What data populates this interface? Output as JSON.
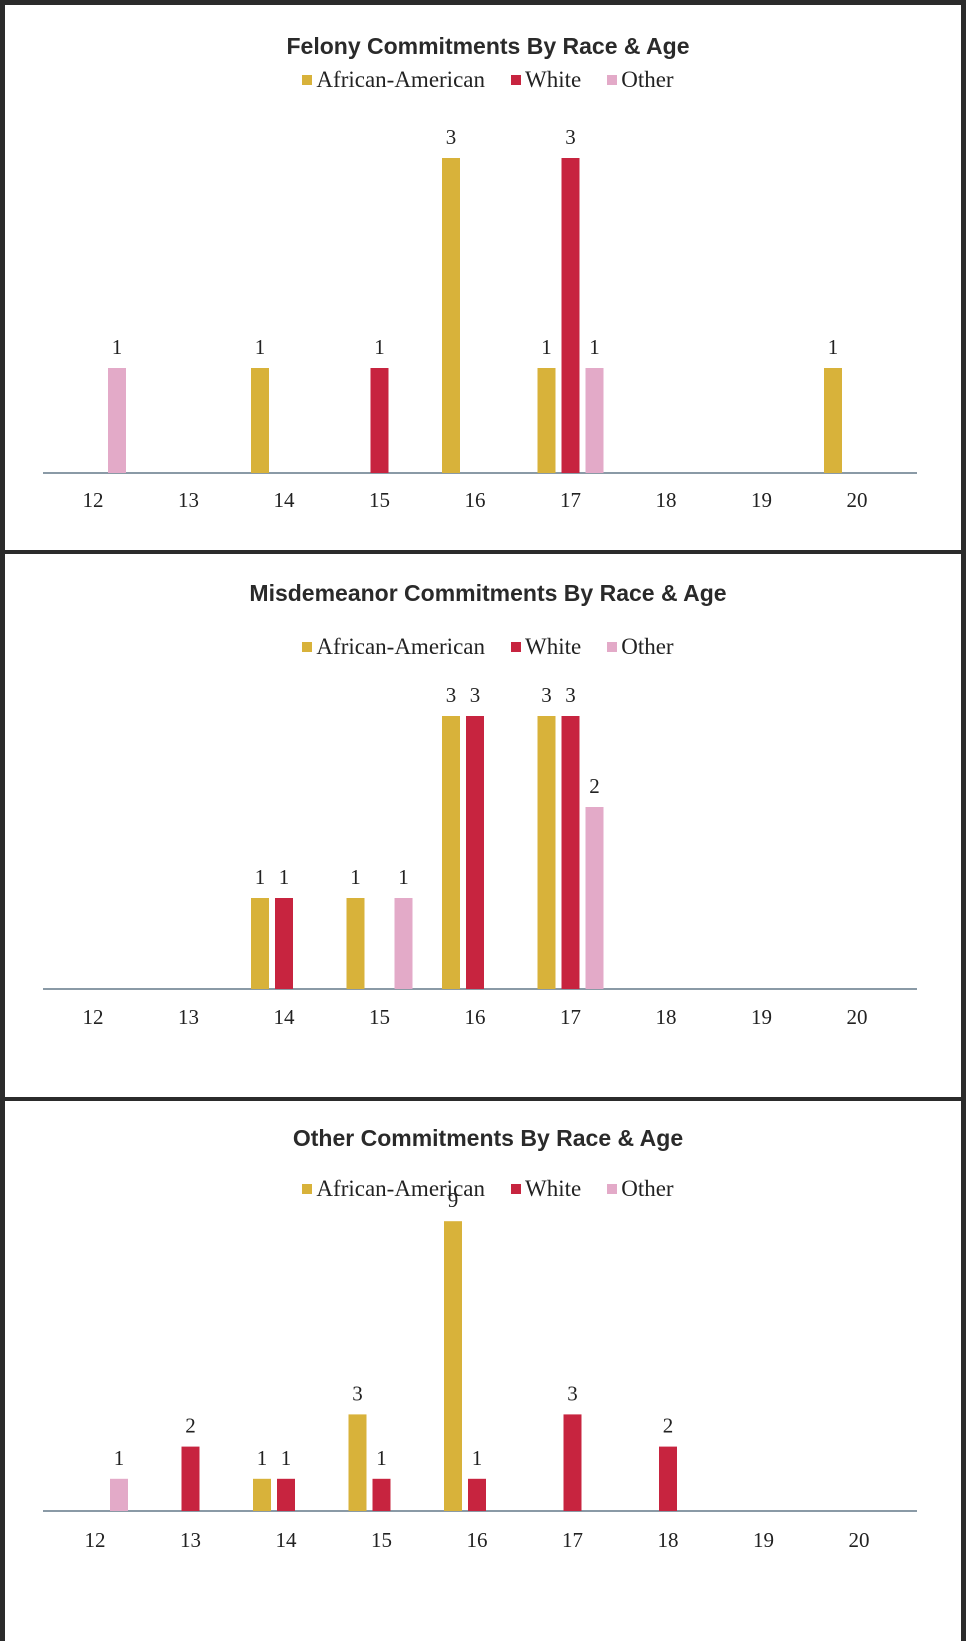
{
  "colors": {
    "african_american": "#d8b23a",
    "white": "#c7243f",
    "other": "#e3aac8"
  },
  "chart_data": [
    {
      "type": "bar",
      "title": "Felony Commitments By Race & Age",
      "categories": [
        "12",
        "13",
        "14",
        "15",
        "16",
        "17",
        "18",
        "19",
        "20"
      ],
      "series": [
        {
          "name": "African-American",
          "values": [
            0,
            0,
            1,
            0,
            3,
            1,
            0,
            0,
            1
          ]
        },
        {
          "name": "White",
          "values": [
            0,
            0,
            0,
            1,
            0,
            3,
            0,
            0,
            0
          ]
        },
        {
          "name": "Other",
          "values": [
            1,
            0,
            0,
            0,
            0,
            1,
            0,
            0,
            0
          ]
        }
      ],
      "legend": "top-center",
      "grid": false
    },
    {
      "type": "bar",
      "title": "Misdemeanor Commitments By Race & Age",
      "categories": [
        "12",
        "13",
        "14",
        "15",
        "16",
        "17",
        "18",
        "19",
        "20"
      ],
      "series": [
        {
          "name": "African-American",
          "values": [
            0,
            0,
            1,
            1,
            3,
            3,
            0,
            0,
            0
          ]
        },
        {
          "name": "White",
          "values": [
            0,
            0,
            1,
            0,
            3,
            3,
            0,
            0,
            0
          ]
        },
        {
          "name": "Other",
          "values": [
            0,
            0,
            0,
            1,
            0,
            2,
            0,
            0,
            0
          ]
        }
      ],
      "legend": "top-center",
      "grid": false
    },
    {
      "type": "bar",
      "title": "Other Commitments By Race & Age",
      "categories": [
        "12",
        "13",
        "14",
        "15",
        "16",
        "17",
        "18",
        "19",
        "20"
      ],
      "series": [
        {
          "name": "African-American",
          "values": [
            0,
            0,
            1,
            3,
            9,
            0,
            0,
            0,
            0
          ]
        },
        {
          "name": "White",
          "values": [
            0,
            2,
            1,
            1,
            1,
            3,
            2,
            0,
            0
          ]
        },
        {
          "name": "Other",
          "values": [
            1,
            0,
            0,
            0,
            0,
            0,
            0,
            0,
            0
          ]
        }
      ],
      "legend": "top-center",
      "grid": false
    }
  ]
}
